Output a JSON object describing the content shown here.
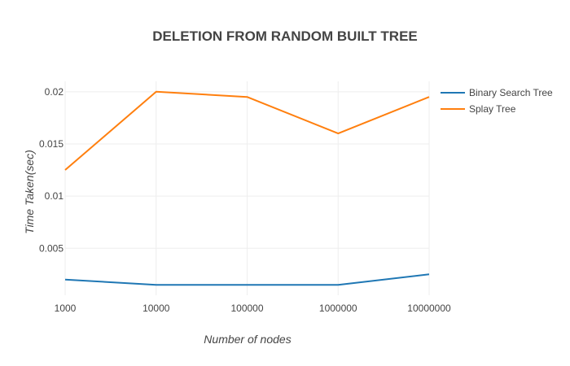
{
  "chart_data": {
    "type": "line",
    "title": "DELETION FROM RANDOM BUILT TREE",
    "xlabel": "Number of nodes",
    "ylabel": "Time Taken(sec)",
    "categories": [
      "1000",
      "10000",
      "100000",
      "1000000",
      "10000000"
    ],
    "x_scale": "log",
    "yticks": [
      "0.005",
      "0.01",
      "0.015",
      "0.02"
    ],
    "ylim": [
      0.0005,
      0.021
    ],
    "grid": true,
    "legend_position": "top-right",
    "series": [
      {
        "name": "Binary Search Tree",
        "color": "#1f77b4",
        "values": [
          0.002,
          0.0015,
          0.0015,
          0.0015,
          0.0025
        ]
      },
      {
        "name": "Splay Tree",
        "color": "#ff7f0e",
        "values": [
          0.0125,
          0.02,
          0.0195,
          0.016,
          0.0195
        ]
      }
    ]
  }
}
